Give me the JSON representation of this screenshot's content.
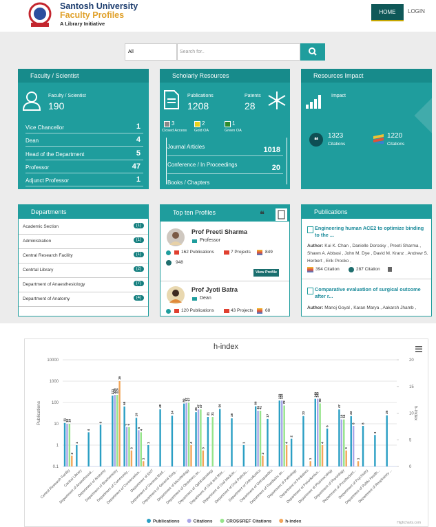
{
  "header": {
    "title": "Santosh University",
    "subtitle": "Faculty Profiles",
    "tagline": "A Library Initiative",
    "nav": [
      "HOME",
      "LOGIN"
    ]
  },
  "search": {
    "select": "All",
    "placeholder": "Search for.."
  },
  "faculty": {
    "title": "Faculty / Scientist",
    "label": "Faculty / Scientist",
    "count": 190,
    "rows": [
      [
        "Vice Chancellor",
        1
      ],
      [
        "Dean",
        4
      ],
      [
        "Head of the Department",
        5
      ],
      [
        "Professor",
        47
      ],
      [
        "Adjunct Professor",
        1
      ]
    ]
  },
  "scholarly": {
    "title": "Scholarly Resources",
    "publications_label": "Publications",
    "publications": 1208,
    "patents_label": "Patents",
    "patents": 28,
    "access": [
      {
        "label": "Closed Access",
        "value": 3
      },
      {
        "label": "Gold OA",
        "value": 2
      },
      {
        "label": "Green OA",
        "value": 1
      }
    ],
    "rows": [
      [
        "Journal Articles",
        1018
      ],
      [
        "Conference / In Proceedings",
        20
      ],
      [
        "Books / Chapters"
      ]
    ]
  },
  "impact": {
    "title": "Resources Impact",
    "label": "Impact",
    "items": [
      {
        "value": 1323,
        "label": "Citations"
      },
      {
        "value": 1220,
        "label": "Citations"
      }
    ]
  },
  "departments": {
    "title": "Departments",
    "rows": [
      [
        "Academic Section",
        "(1)"
      ],
      [
        "Administration",
        "(1)"
      ],
      [
        "Central Research Facility",
        "(1)"
      ],
      [
        "Centrtal Library",
        "(2)"
      ],
      [
        "Department of Anaesthesiology",
        "(7)"
      ],
      [
        "Department of Anatomy",
        "(4)"
      ]
    ]
  },
  "profiles": {
    "title": "Top ten Profiles",
    "items": [
      {
        "name": "Prof Preeti Sharma",
        "role": "Professor",
        "publications": "162 Publications",
        "projects": "7 Projects",
        "crossref": 849,
        "citations": 948,
        "button": "View Profile"
      },
      {
        "name": "Prof Jyoti Batra",
        "role": "Dean",
        "publications": "120 Publications",
        "projects": "43 Projects",
        "crossref": 68
      }
    ]
  },
  "publications": {
    "title": "Publications",
    "items": [
      {
        "title": "Engineering human ACE2 to optimize binding to the ...",
        "author_label": "Author:",
        "authors": "Kui K. Chan , Danielle Dorosky , Preeti Sharma , Shawn A. Abbasi , John M. Dye , David M. Kranz , Andrew S. Herbert , Erik Procko ,",
        "crossref": "394 Citation",
        "citations": "287 Citation"
      },
      {
        "title": "Comparative evaluation of surgical outcome after r...",
        "author_label": "Author:",
        "authors": "Manoj Goyal , Karan Marya , Aakarsh Jhamb ,"
      }
    ]
  },
  "chart_data": {
    "type": "bar",
    "title": "h-index",
    "y_label": "Publications",
    "y2_label": "h-index",
    "credit": "Highcharts.com",
    "log_y": true,
    "ylim": [
      0.1,
      10000
    ],
    "yticks": [
      0.1,
      1,
      10,
      100,
      1000,
      10000
    ],
    "y2lim": [
      0,
      20
    ],
    "y2ticks": [
      0,
      5,
      10,
      15,
      20
    ],
    "categories": [
      "Central Research Facility",
      "Central Library",
      "Department of Anaesthesiol...",
      "Department of Anatomy",
      "Department of Biochemistry",
      "Department of Community...",
      "Department of Conservative...",
      "Department of ENT",
      "Department of General Med...",
      "Department of General Surg...",
      "Department of Microbiology",
      "Department of Obstetrics an...",
      "Department of Ophthalmology",
      "Department of Oral and Max...",
      "Department of Oral Medicin...",
      "Department of Oral Patholo...",
      "Department of Orthodontics",
      "Department of Orthopaedics",
      "Department of Paediatric an...",
      "Department of Pathology",
      "Department of Pediatrics",
      "Department of Periodontics...",
      "Department of Pharmacology",
      "Department of Physiology",
      "Department of Prosthodont...",
      "Department of Psychiatry",
      "Department of Public Health...",
      "Department of Respiratory ..."
    ],
    "series": [
      {
        "name": "Publications",
        "color": "#2b9fc4",
        "values": [
          11,
          1,
          4,
          9,
          211,
          65,
          19,
          1,
          48,
          24,
          89,
          35,
          21,
          50,
          18,
          1,
          66,
          17,
          123,
          2,
          23,
          149,
          6,
          47,
          23,
          8,
          3,
          25
        ]
      },
      {
        "name": "Citations",
        "color": "#a9a6e8",
        "values": [
          10,
          null,
          null,
          null,
          226,
          7,
          5,
          null,
          null,
          null,
          97,
          47,
          null,
          null,
          null,
          null,
          41,
          null,
          123,
          null,
          null,
          149,
          null,
          16,
          8,
          null,
          null,
          null
        ]
      },
      {
        "name": "CROSSREF Citations",
        "color": "#95e48a",
        "values": [
          10,
          null,
          null,
          null,
          226,
          7,
          4,
          null,
          null,
          null,
          97,
          47,
          21,
          null,
          null,
          null,
          41,
          null,
          72,
          null,
          null,
          90,
          null,
          16,
          null,
          null,
          null,
          null
        ]
      },
      {
        "name": "h-index",
        "color": "#f2a65a",
        "axis": "y2",
        "values": [
          2,
          null,
          null,
          null,
          16,
          3,
          1,
          null,
          null,
          null,
          4,
          3,
          null,
          null,
          null,
          null,
          2,
          null,
          4,
          null,
          1,
          4,
          null,
          3,
          1,
          null,
          null,
          null
        ]
      }
    ],
    "legend": "bottom"
  }
}
